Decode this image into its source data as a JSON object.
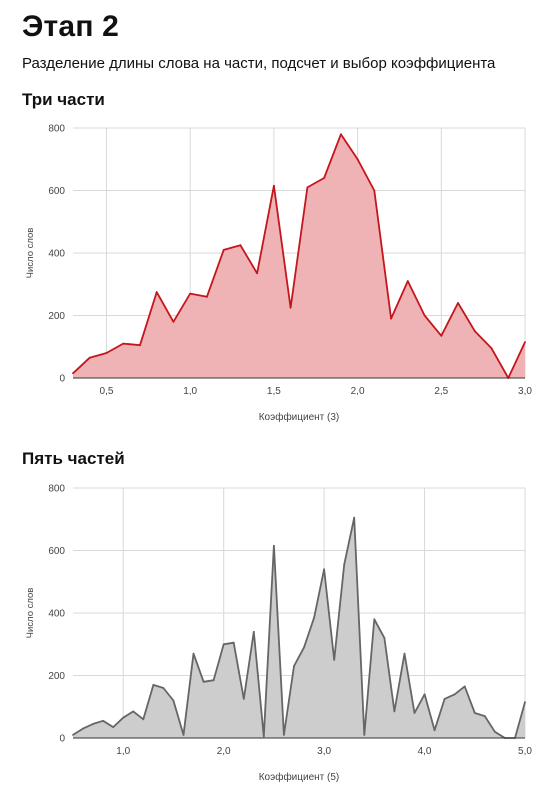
{
  "page": {
    "title": "Этап 2",
    "subtitle": "Разделение длины слова на части, подсчет и выбор коэффициента"
  },
  "chart_data": [
    {
      "type": "area",
      "title": "Три части",
      "xlabel": "Коэффициент (3)",
      "ylabel": "Число слов",
      "xlim": [
        0.3,
        3.0
      ],
      "ylim": [
        0,
        800
      ],
      "x_ticks": [
        "0,5",
        "1,0",
        "1,5",
        "2,0",
        "2,5",
        "3,0"
      ],
      "x_tick_values": [
        0.5,
        1.0,
        1.5,
        2.0,
        2.5,
        3.0
      ],
      "y_ticks": [
        "0",
        "200",
        "400",
        "600",
        "800"
      ],
      "y_tick_values": [
        0,
        200,
        400,
        600,
        800
      ],
      "grid": true,
      "colors": {
        "line": "#c4161c",
        "fill": "#f0b3b5"
      },
      "x": [
        0.3,
        0.4,
        0.5,
        0.6,
        0.7,
        0.8,
        0.9,
        1.0,
        1.1,
        1.2,
        1.3,
        1.4,
        1.5,
        1.6,
        1.7,
        1.8,
        1.9,
        2.0,
        2.1,
        2.2,
        2.3,
        2.4,
        2.5,
        2.6,
        2.7,
        2.8,
        2.9,
        3.0
      ],
      "values": [
        15,
        65,
        80,
        110,
        105,
        275,
        180,
        270,
        260,
        410,
        425,
        335,
        615,
        225,
        610,
        640,
        780,
        700,
        600,
        190,
        310,
        200,
        135,
        240,
        150,
        95,
        0,
        115
      ]
    },
    {
      "type": "area",
      "title": "Пять частей",
      "xlabel": "Коэффициент (5)",
      "ylabel": "Число слов",
      "xlim": [
        0.5,
        5.0
      ],
      "ylim": [
        0,
        800
      ],
      "x_ticks": [
        "1,0",
        "2,0",
        "3,0",
        "4,0",
        "5,0"
      ],
      "x_tick_values": [
        1.0,
        2.0,
        3.0,
        4.0,
        5.0
      ],
      "y_ticks": [
        "0",
        "200",
        "400",
        "600",
        "800"
      ],
      "y_tick_values": [
        0,
        200,
        400,
        600,
        800
      ],
      "grid": true,
      "colors": {
        "line": "#666666",
        "fill": "#cdcdcd"
      },
      "x": [
        0.5,
        0.6,
        0.7,
        0.8,
        0.9,
        1.0,
        1.1,
        1.2,
        1.3,
        1.4,
        1.5,
        1.6,
        1.7,
        1.8,
        1.9,
        2.0,
        2.1,
        2.2,
        2.3,
        2.4,
        2.5,
        2.6,
        2.7,
        2.8,
        2.9,
        3.0,
        3.1,
        3.2,
        3.3,
        3.4,
        3.5,
        3.6,
        3.7,
        3.8,
        3.9,
        4.0,
        4.1,
        4.2,
        4.3,
        4.4,
        4.5,
        4.6,
        4.7,
        4.8,
        4.9,
        5.0
      ],
      "values": [
        10,
        30,
        45,
        55,
        35,
        65,
        85,
        60,
        170,
        160,
        120,
        10,
        270,
        180,
        185,
        300,
        305,
        125,
        340,
        5,
        615,
        10,
        230,
        290,
        385,
        540,
        250,
        555,
        705,
        10,
        380,
        320,
        85,
        270,
        80,
        140,
        25,
        125,
        140,
        165,
        80,
        70,
        20,
        0,
        0,
        115
      ]
    }
  ]
}
